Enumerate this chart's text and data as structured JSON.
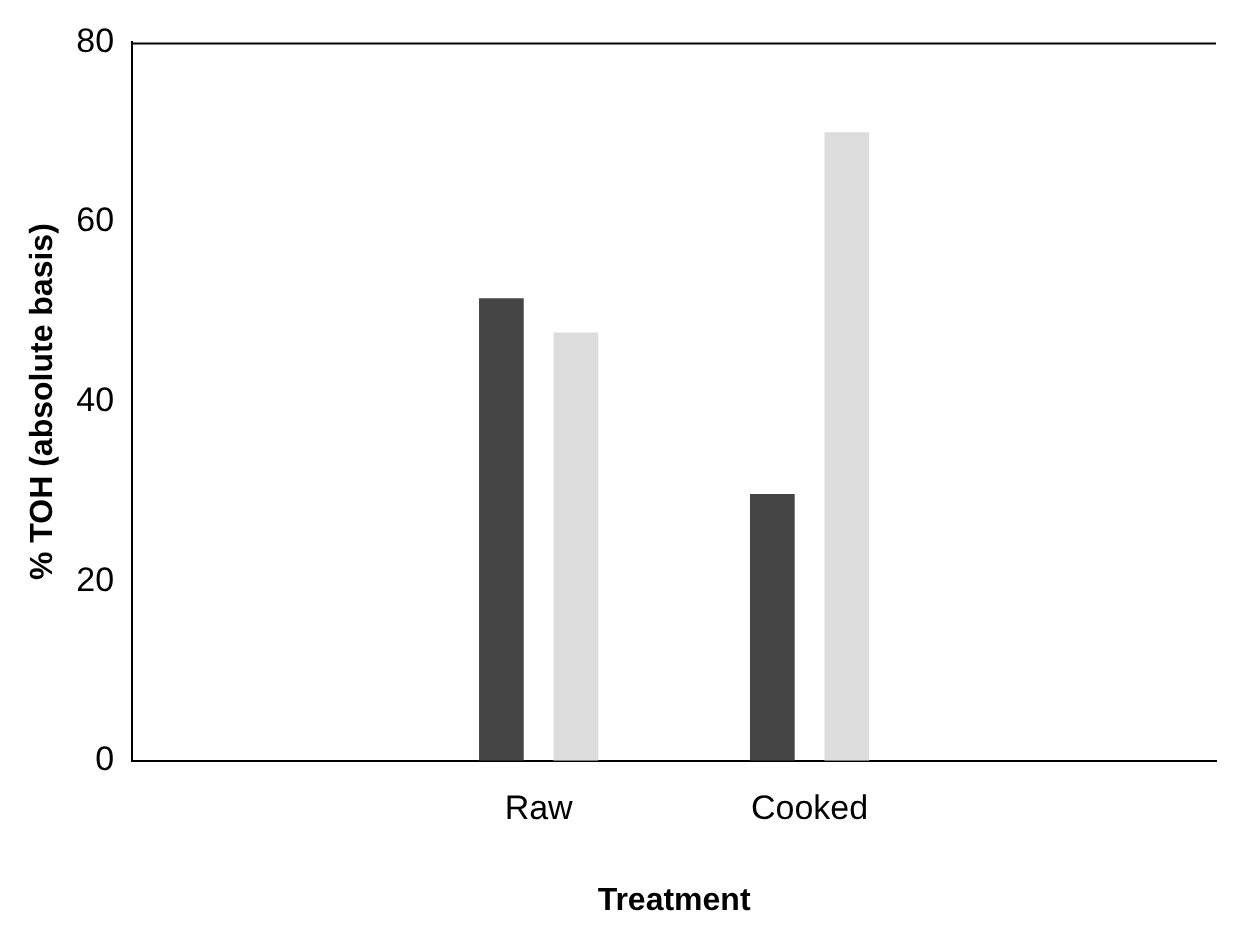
{
  "chart_data": {
    "type": "bar",
    "xlabel": "Treatment",
    "ylabel": "% TOH (absolute basis)",
    "categories": [
      null,
      "Raw",
      "Cooked",
      null
    ],
    "series": [
      {
        "color": "#454545",
        "values": [
          null,
          51.5,
          29.7,
          null
        ]
      },
      {
        "color": "#dcdcdc",
        "values": [
          null,
          47.7,
          70,
          null
        ]
      }
    ],
    "ylim": [
      0,
      80
    ],
    "yticks": [
      0,
      20,
      40,
      60,
      80
    ],
    "grid": false,
    "legend": false
  }
}
